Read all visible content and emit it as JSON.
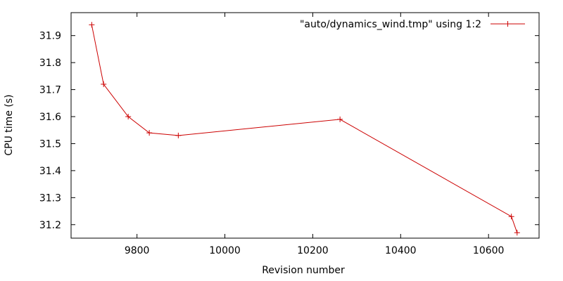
{
  "chart_data": {
    "type": "line",
    "title": "",
    "xlabel": "Revision number",
    "ylabel": "CPU time (s)",
    "xlim": [
      9650,
      10715
    ],
    "ylim": [
      31.15,
      31.985
    ],
    "xticks": [
      9800,
      10000,
      10200,
      10400,
      10600
    ],
    "yticks": [
      31.2,
      31.3,
      31.4,
      31.5,
      31.6,
      31.7,
      31.8,
      31.9
    ],
    "xtick_labels": [
      "9800",
      "10000",
      "10200",
      "10400",
      "10600"
    ],
    "ytick_labels": [
      "31.2",
      "31.3",
      "31.4",
      "31.5",
      "31.6",
      "31.7",
      "31.8",
      "31.9"
    ],
    "legend_position": "top-right",
    "grid": false,
    "series": [
      {
        "name": "\"auto/dynamics_wind.tmp\" using 1:2",
        "color": "#cc0000",
        "marker": "plus",
        "x": [
          9697,
          9724,
          9780,
          9828,
          9894,
          10262,
          10652,
          10665
        ],
        "y": [
          31.94,
          31.72,
          31.6,
          31.54,
          31.53,
          31.59,
          31.23,
          31.17
        ]
      }
    ]
  }
}
